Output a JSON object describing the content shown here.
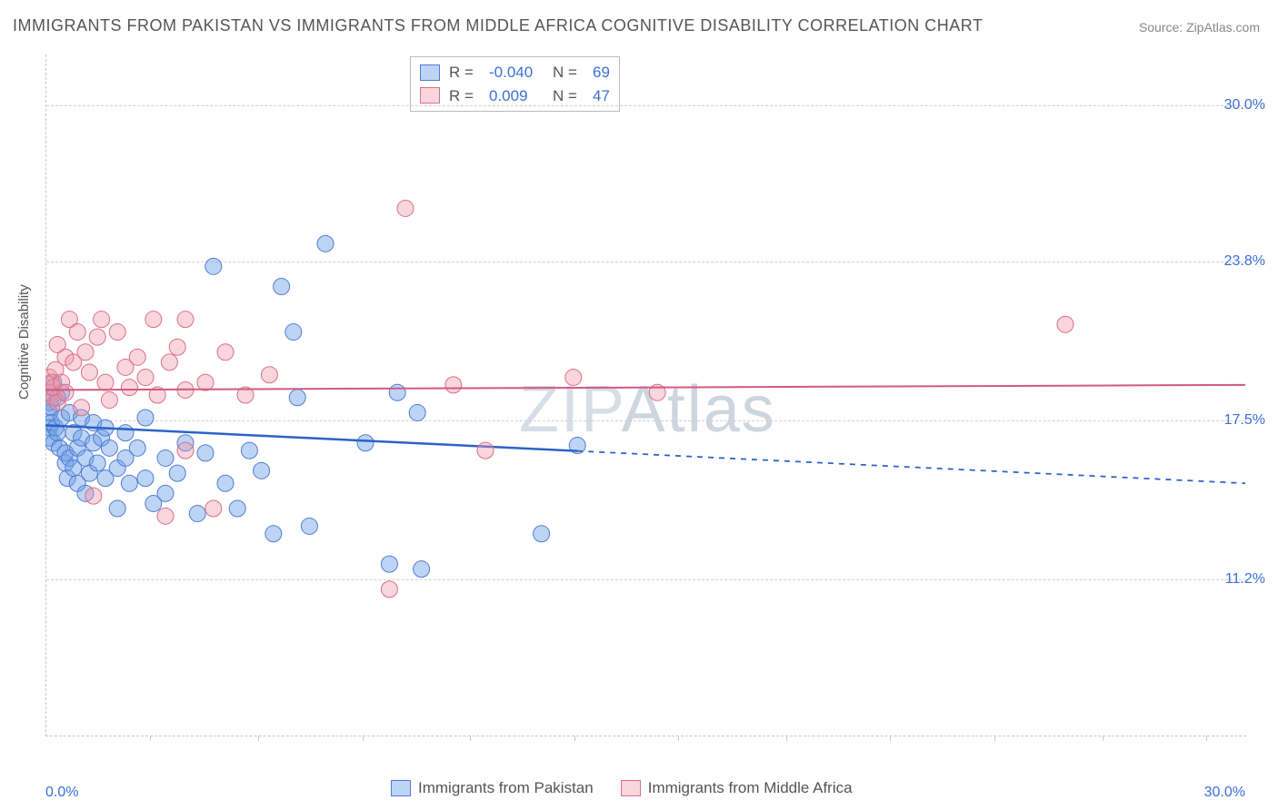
{
  "title": "IMMIGRANTS FROM PAKISTAN VS IMMIGRANTS FROM MIDDLE AFRICA COGNITIVE DISABILITY CORRELATION CHART",
  "source": "Source: ZipAtlas.com",
  "watermark": {
    "zip": "ZIP",
    "atlas": "Atlas"
  },
  "y_axis_label": "Cognitive Disability",
  "chart": {
    "type": "scatter",
    "xlim": [
      0,
      30
    ],
    "ylim": [
      5,
      32
    ],
    "background_color": "#ffffff",
    "grid_color": "#d0d0d0",
    "axis_border_color": "#c8c8c8",
    "marker_radius": 9,
    "marker_opacity_fill": 0.45,
    "yticks": [
      {
        "v": 11.2,
        "label": "11.2%"
      },
      {
        "v": 17.5,
        "label": "17.5%"
      },
      {
        "v": 23.8,
        "label": "23.8%"
      },
      {
        "v": 30.0,
        "label": "30.0%"
      }
    ],
    "xticks_minor": [
      2.6,
      5.3,
      7.9,
      10.6,
      13.2,
      15.8,
      18.5,
      21.1,
      23.7,
      26.4,
      29.0
    ],
    "xtick_labels": [
      {
        "v": 0.0,
        "label": "0.0%",
        "align": "left"
      },
      {
        "v": 30.0,
        "label": "30.0%",
        "align": "right"
      }
    ],
    "value_color": "#3b6fd6",
    "title_color": "#555",
    "series": [
      {
        "key": "pakistan",
        "label": "Immigrants from Pakistan",
        "fill": "rgba(110,160,230,0.45)",
        "stroke": "#4f7dd1",
        "R": "-0.040",
        "N": "69",
        "trend": {
          "y_at_x0": 17.3,
          "y_at_x30": 15.0,
          "x_solid_until": 13.3,
          "line_color": "#2b62c9",
          "line_width": 2.5
        },
        "points": [
          [
            0.1,
            18.6
          ],
          [
            0.1,
            18.2
          ],
          [
            0.1,
            17.8
          ],
          [
            0.1,
            17.2
          ],
          [
            0.1,
            16.8
          ],
          [
            0.15,
            18.0
          ],
          [
            0.15,
            17.4
          ],
          [
            0.2,
            19.0
          ],
          [
            0.2,
            16.6
          ],
          [
            0.25,
            17.2
          ],
          [
            0.3,
            18.4
          ],
          [
            0.3,
            17.0
          ],
          [
            0.35,
            16.4
          ],
          [
            0.4,
            18.6
          ],
          [
            0.4,
            17.6
          ],
          [
            0.5,
            15.8
          ],
          [
            0.5,
            16.2
          ],
          [
            0.55,
            15.2
          ],
          [
            0.6,
            16.0
          ],
          [
            0.6,
            17.8
          ],
          [
            0.7,
            15.6
          ],
          [
            0.7,
            17.0
          ],
          [
            0.8,
            16.4
          ],
          [
            0.8,
            15.0
          ],
          [
            0.9,
            16.8
          ],
          [
            0.9,
            17.6
          ],
          [
            1.0,
            16.0
          ],
          [
            1.0,
            14.6
          ],
          [
            1.1,
            15.4
          ],
          [
            1.2,
            16.6
          ],
          [
            1.2,
            17.4
          ],
          [
            1.3,
            15.8
          ],
          [
            1.4,
            16.8
          ],
          [
            1.5,
            15.2
          ],
          [
            1.5,
            17.2
          ],
          [
            1.6,
            16.4
          ],
          [
            1.8,
            15.6
          ],
          [
            1.8,
            14.0
          ],
          [
            2.0,
            16.0
          ],
          [
            2.0,
            17.0
          ],
          [
            2.1,
            15.0
          ],
          [
            2.3,
            16.4
          ],
          [
            2.5,
            15.2
          ],
          [
            2.5,
            17.6
          ],
          [
            2.7,
            14.2
          ],
          [
            3.0,
            16.0
          ],
          [
            3.0,
            14.6
          ],
          [
            3.3,
            15.4
          ],
          [
            3.5,
            16.6
          ],
          [
            3.8,
            13.8
          ],
          [
            4.0,
            16.2
          ],
          [
            4.2,
            23.6
          ],
          [
            4.5,
            15.0
          ],
          [
            4.8,
            14.0
          ],
          [
            5.1,
            16.3
          ],
          [
            5.4,
            15.5
          ],
          [
            5.7,
            13.0
          ],
          [
            5.9,
            22.8
          ],
          [
            6.2,
            21.0
          ],
          [
            6.3,
            18.4
          ],
          [
            6.6,
            13.3
          ],
          [
            7.0,
            24.5
          ],
          [
            8.0,
            16.6
          ],
          [
            8.6,
            11.8
          ],
          [
            8.8,
            18.6
          ],
          [
            9.3,
            17.8
          ],
          [
            9.4,
            11.6
          ],
          [
            12.4,
            13.0
          ],
          [
            13.3,
            16.5
          ]
        ]
      },
      {
        "key": "middle_africa",
        "label": "Immigrants from Middle Africa",
        "fill": "rgba(240,150,170,0.4)",
        "stroke": "#d77089",
        "R": "0.009",
        "N": "47",
        "trend": {
          "y_at_x0": 18.7,
          "y_at_x30": 18.9,
          "x_solid_until": 30,
          "line_color": "#d15a80",
          "line_width": 2
        },
        "points": [
          [
            0.1,
            19.2
          ],
          [
            0.1,
            18.6
          ],
          [
            0.15,
            19.0
          ],
          [
            0.2,
            18.4
          ],
          [
            0.2,
            18.8
          ],
          [
            0.25,
            19.5
          ],
          [
            0.3,
            20.5
          ],
          [
            0.3,
            18.2
          ],
          [
            0.4,
            19.0
          ],
          [
            0.5,
            20.0
          ],
          [
            0.5,
            18.6
          ],
          [
            0.6,
            21.5
          ],
          [
            0.7,
            19.8
          ],
          [
            0.8,
            21.0
          ],
          [
            0.9,
            18.0
          ],
          [
            1.0,
            20.2
          ],
          [
            1.1,
            19.4
          ],
          [
            1.2,
            14.5
          ],
          [
            1.3,
            20.8
          ],
          [
            1.4,
            21.5
          ],
          [
            1.5,
            19.0
          ],
          [
            1.6,
            18.3
          ],
          [
            1.8,
            21.0
          ],
          [
            2.0,
            19.6
          ],
          [
            2.1,
            18.8
          ],
          [
            2.3,
            20.0
          ],
          [
            2.5,
            19.2
          ],
          [
            2.7,
            21.5
          ],
          [
            2.8,
            18.5
          ],
          [
            3.0,
            13.7
          ],
          [
            3.1,
            19.8
          ],
          [
            3.3,
            20.4
          ],
          [
            3.5,
            18.7
          ],
          [
            3.5,
            16.3
          ],
          [
            3.5,
            21.5
          ],
          [
            4.0,
            19.0
          ],
          [
            4.2,
            14.0
          ],
          [
            4.5,
            20.2
          ],
          [
            5.0,
            18.5
          ],
          [
            5.6,
            19.3
          ],
          [
            8.6,
            10.8
          ],
          [
            9.0,
            25.9
          ],
          [
            10.2,
            18.9
          ],
          [
            11.0,
            16.3
          ],
          [
            13.2,
            19.2
          ],
          [
            15.3,
            18.6
          ],
          [
            25.5,
            21.3
          ]
        ]
      }
    ]
  },
  "legend_top": {
    "R_label": "R =",
    "N_label": "N ="
  }
}
